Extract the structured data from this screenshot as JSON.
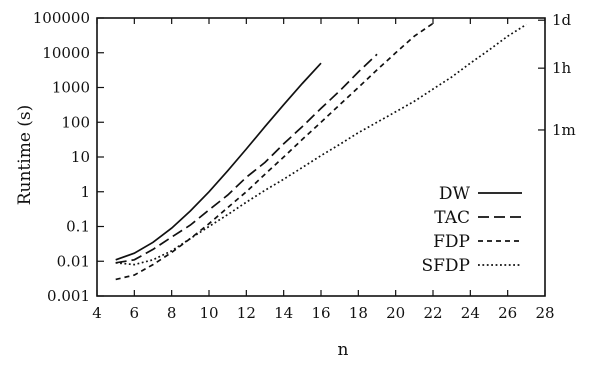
{
  "chart_data": {
    "type": "line",
    "xlabel": "n",
    "ylabel": "Runtime (s)",
    "xlim": [
      4,
      28
    ],
    "ylim": [
      0.001,
      100000
    ],
    "yscale": "log",
    "xticks": [
      4,
      6,
      8,
      10,
      12,
      14,
      16,
      18,
      20,
      22,
      24,
      26,
      28
    ],
    "xtick_labels": [
      "4",
      "6",
      "8",
      "10",
      "12",
      "14",
      "16",
      "18",
      "20",
      "22",
      "24",
      "26",
      "28"
    ],
    "yticks": [
      0.001,
      0.01,
      0.1,
      1,
      10,
      100,
      1000,
      10000,
      100000
    ],
    "ytick_labels": [
      "0.001",
      "0.01",
      "0.1",
      "1",
      "10",
      "100",
      "1000",
      "10000",
      "100000"
    ],
    "right_axis": {
      "ticks": [
        60,
        3600,
        86400
      ],
      "tick_labels": [
        "1m",
        "1h",
        "1d"
      ]
    },
    "grid": false,
    "legend_position": "lower-right",
    "series": [
      {
        "name": "DW",
        "dash": "solid",
        "x": [
          5,
          6,
          7,
          8,
          9,
          10,
          11,
          12,
          13,
          14,
          15,
          16
        ],
        "y": [
          0.011,
          0.017,
          0.035,
          0.09,
          0.28,
          1.0,
          4.0,
          17,
          75,
          320,
          1300,
          5000
        ]
      },
      {
        "name": "TAC",
        "dash": "long",
        "x": [
          5,
          6,
          7,
          8,
          9,
          10,
          11,
          12,
          13,
          14,
          15,
          16,
          17,
          18,
          19
        ],
        "y": [
          0.009,
          0.011,
          0.022,
          0.05,
          0.11,
          0.3,
          0.8,
          2.6,
          7,
          24,
          75,
          250,
          800,
          2800,
          9000
        ]
      },
      {
        "name": "FDP",
        "dash": "short",
        "x": [
          5,
          6,
          7,
          8,
          9,
          10,
          11,
          12,
          13,
          14,
          15,
          16,
          17,
          18,
          19,
          20,
          21,
          22
        ],
        "y": [
          0.003,
          0.004,
          0.008,
          0.018,
          0.045,
          0.12,
          0.35,
          1.0,
          3.2,
          10,
          32,
          100,
          320,
          1000,
          3200,
          10000,
          30000,
          70000
        ]
      },
      {
        "name": "SFDP",
        "dash": "dotted",
        "x": [
          5,
          6,
          7,
          8,
          9,
          10,
          11,
          12,
          13,
          14,
          15,
          16,
          17,
          18,
          19,
          20,
          21,
          22,
          23,
          24,
          25,
          26,
          27
        ],
        "y": [
          0.009,
          0.008,
          0.011,
          0.02,
          0.045,
          0.1,
          0.22,
          0.5,
          1.1,
          2.3,
          5,
          11,
          23,
          50,
          100,
          200,
          400,
          900,
          2000,
          5000,
          12000,
          30000,
          65000
        ]
      }
    ]
  }
}
